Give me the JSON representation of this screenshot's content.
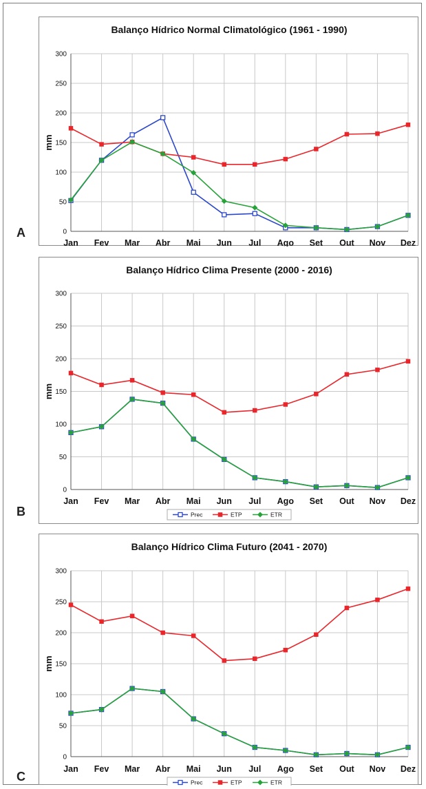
{
  "charts": [
    {
      "label": "A"
    },
    {
      "label": "B"
    },
    {
      "label": "C"
    }
  ],
  "chart_data": [
    {
      "type": "line",
      "title": "Balanço Hídrico Normal Climatológico (1961 - 1990)",
      "xlabel": "",
      "ylabel": "mm",
      "ylim": [
        0,
        300
      ],
      "yticks": [
        "0",
        "50",
        "100",
        "150",
        "200",
        "250",
        "300"
      ],
      "categories": [
        "Jan",
        "Fev",
        "Mar",
        "Abr",
        "Mai",
        "Jun",
        "Jul",
        "Ago",
        "Set",
        "Out",
        "Nov",
        "Dez"
      ],
      "grid": true,
      "legend": "bottom",
      "series": [
        {
          "name": "Prec",
          "color": "#2b47c9",
          "marker": "open-square",
          "values": [
            52,
            120,
            163,
            192,
            66,
            28,
            30,
            6,
            6,
            3,
            8,
            27
          ]
        },
        {
          "name": "ETP",
          "color": "#e8262b",
          "marker": "square",
          "values": [
            174,
            147,
            151,
            131,
            125,
            113,
            113,
            122,
            139,
            164,
            165,
            180
          ]
        },
        {
          "name": "ETR",
          "color": "#27a23a",
          "marker": "diamond",
          "values": [
            53,
            120,
            151,
            131,
            99,
            51,
            40,
            10,
            6,
            3,
            8,
            27
          ]
        }
      ]
    },
    {
      "type": "line",
      "title": "Balanço Hídrico Clima Presente (2000 - 2016)",
      "xlabel": "",
      "ylabel": "mm",
      "ylim": [
        0,
        300
      ],
      "yticks": [
        "0",
        "50",
        "100",
        "150",
        "200",
        "250",
        "300"
      ],
      "categories": [
        "Jan",
        "Fev",
        "Mar",
        "Abr",
        "Mai",
        "Jun",
        "Jul",
        "Ago",
        "Set",
        "Out",
        "Nov",
        "Dez"
      ],
      "grid": true,
      "legend": "bottom",
      "series": [
        {
          "name": "Prec",
          "color": "#2b47c9",
          "marker": "open-square",
          "values": [
            87,
            96,
            138,
            132,
            77,
            46,
            18,
            12,
            4,
            6,
            3,
            18
          ]
        },
        {
          "name": "ETP",
          "color": "#e8262b",
          "marker": "square",
          "values": [
            178,
            160,
            167,
            148,
            145,
            118,
            121,
            130,
            146,
            176,
            183,
            196
          ]
        },
        {
          "name": "ETR",
          "color": "#27a23a",
          "marker": "diamond",
          "values": [
            87,
            96,
            138,
            132,
            77,
            46,
            18,
            12,
            4,
            6,
            3,
            18
          ]
        }
      ]
    },
    {
      "type": "line",
      "title": "Balanço Hídrico Clima Futuro (2041 - 2070)",
      "xlabel": "",
      "ylabel": "mm",
      "ylim": [
        0,
        300
      ],
      "yticks": [
        "0",
        "50",
        "100",
        "150",
        "200",
        "250",
        "300"
      ],
      "categories": [
        "Jan",
        "Fev",
        "Mar",
        "Abr",
        "Mai",
        "Jun",
        "Jul",
        "Ago",
        "Set",
        "Out",
        "Nov",
        "Dez"
      ],
      "grid": true,
      "legend": "bottom",
      "series": [
        {
          "name": "Prec",
          "color": "#2b47c9",
          "marker": "open-square",
          "values": [
            70,
            76,
            110,
            105,
            61,
            37,
            15,
            10,
            3,
            5,
            3,
            15
          ]
        },
        {
          "name": "ETP",
          "color": "#e8262b",
          "marker": "square",
          "values": [
            245,
            218,
            227,
            200,
            195,
            155,
            158,
            172,
            197,
            240,
            253,
            271
          ]
        },
        {
          "name": "ETR",
          "color": "#27a23a",
          "marker": "diamond",
          "values": [
            70,
            76,
            110,
            105,
            61,
            37,
            15,
            10,
            3,
            5,
            3,
            15
          ]
        }
      ]
    }
  ]
}
